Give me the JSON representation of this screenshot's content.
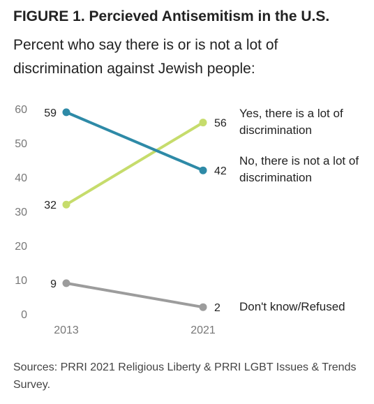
{
  "header": {
    "title": "FIGURE 1. Percieved Antisemitism in the U.S.",
    "subtitle": "Percent who say there is or is not a lot of discrimination against Jewish people:"
  },
  "source_note": "Sources: PRRI 2021 Religious Liberty & PRRI LGBT Issues & Trends Survey.",
  "chart_data": {
    "type": "line",
    "x": [
      "2013",
      "2021"
    ],
    "ylim": [
      0,
      60
    ],
    "yticks": [
      0,
      10,
      20,
      30,
      40,
      50,
      60
    ],
    "grid": false,
    "legend": "right-end labels",
    "series": [
      {
        "name": "Yes, there is a lot of discrimination",
        "values": [
          32,
          56
        ],
        "color": "#c6dc6c"
      },
      {
        "name": "No, there is not a lot of discrimination",
        "values": [
          59,
          42
        ],
        "color": "#2e8aa7"
      },
      {
        "name": "Don't know/Refused",
        "values": [
          9,
          2
        ],
        "color": "#9c9c9c"
      }
    ]
  }
}
